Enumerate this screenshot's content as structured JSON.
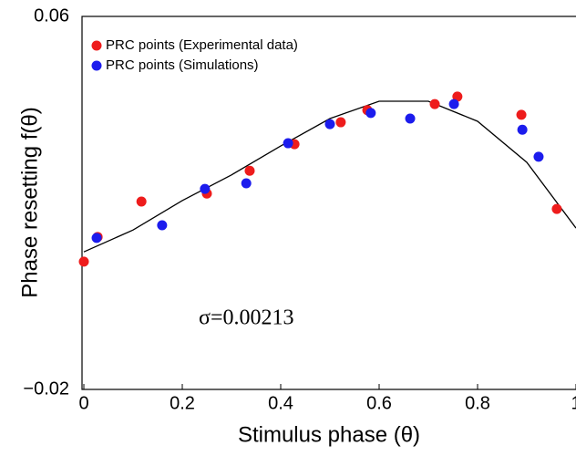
{
  "chart_data": {
    "type": "scatter",
    "xlabel": "Stimulus phase (θ)",
    "ylabel": "Phase resetting f(θ)",
    "annotation": "σ=0.00213",
    "xlim": [
      0,
      1
    ],
    "ylim": [
      -0.02,
      0.06
    ],
    "xticks": [
      0,
      0.2,
      0.4,
      0.6,
      0.8,
      1
    ],
    "yticks": [
      {
        "value": -0.02,
        "label": "−0.02"
      },
      0.06
    ],
    "legend": "upper-left",
    "series": [
      {
        "name": "PRC points (Experimental data)",
        "color": "#ee1c1c",
        "x": [
          0,
          0.028,
          0.117,
          0.25,
          0.337,
          0.428,
          0.522,
          0.576,
          0.713,
          0.759,
          0.889,
          0.961
        ],
        "values": [
          0.0074,
          0.0127,
          0.0203,
          0.022,
          0.0269,
          0.0326,
          0.0373,
          0.0399,
          0.0412,
          0.0428,
          0.0389,
          0.0187
        ]
      },
      {
        "name": "PRC points (Simulations)",
        "color": "#1c1ced",
        "x": [
          0.026,
          0.159,
          0.246,
          0.33,
          0.415,
          0.5,
          0.583,
          0.663,
          0.752,
          0.891,
          0.924
        ],
        "values": [
          0.0125,
          0.0152,
          0.023,
          0.0242,
          0.0328,
          0.0369,
          0.0393,
          0.0381,
          0.0412,
          0.0357,
          0.0299
        ]
      }
    ],
    "curve": {
      "color": "#000000",
      "x": [
        0,
        0.1,
        0.2,
        0.3,
        0.4,
        0.5,
        0.6,
        0.7,
        0.8,
        0.9,
        1
      ],
      "values": [
        0.0095,
        0.0142,
        0.0205,
        0.026,
        0.0322,
        0.0381,
        0.0418,
        0.0418,
        0.0375,
        0.0287,
        0.0146
      ]
    }
  }
}
